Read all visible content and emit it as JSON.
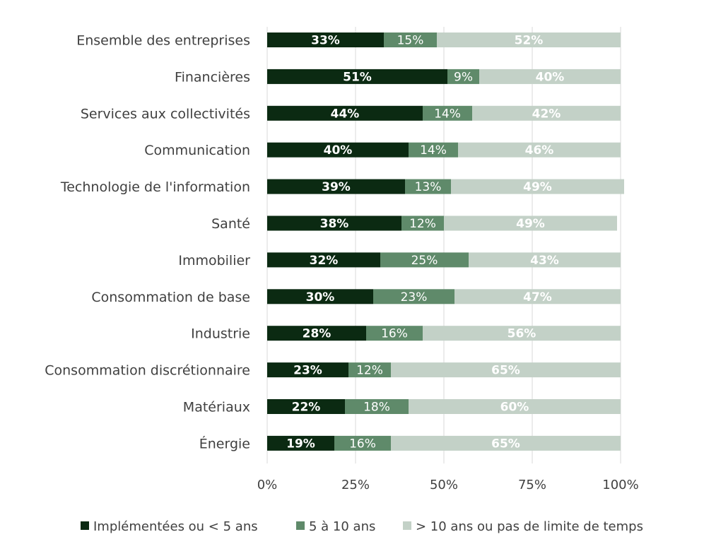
{
  "chart_data": {
    "type": "bar",
    "orientation": "horizontal",
    "stacked": "percent",
    "categories": [
      "Ensemble des entreprises",
      "Financières",
      "Services aux collectivités",
      "Communication",
      "Technologie de l'information",
      "Santé",
      "Immobilier",
      "Consommation de base",
      "Industrie",
      "Consommation discrétionnaire",
      "Matériaux",
      "Énergie"
    ],
    "series": [
      {
        "name": "Implémentées ou < 5 ans",
        "color": "#0b2a12",
        "values": [
          33,
          51,
          44,
          40,
          39,
          38,
          32,
          30,
          28,
          23,
          22,
          19
        ],
        "labels": [
          "33%",
          "51%",
          "44%",
          "40%",
          "39%",
          "38%",
          "32%",
          "30%",
          "28%",
          "23%",
          "22%",
          "19%"
        ]
      },
      {
        "name": "5 à 10 ans",
        "color": "#5f8a6a",
        "values": [
          15,
          9,
          14,
          14,
          13,
          12,
          25,
          23,
          16,
          12,
          18,
          16
        ],
        "labels": [
          "15%",
          "9%",
          "14%",
          "14%",
          "13%",
          "12%",
          "25%",
          "23%",
          "16%",
          "12%",
          "18%",
          "16%"
        ]
      },
      {
        "name": "> 10 ans ou pas de limite de temps",
        "color": "#c3d1c7",
        "values": [
          52,
          40,
          42,
          46,
          49,
          49,
          43,
          47,
          56,
          65,
          60,
          65
        ],
        "labels": [
          "52%",
          "40%",
          "42%",
          "46%",
          "49%",
          "49%",
          "43%",
          "47%",
          "56%",
          "65%",
          "60%",
          "65%"
        ]
      }
    ],
    "x_ticks": [
      "0%",
      "25%",
      "50%",
      "75%",
      "100%"
    ],
    "xlim": [
      0,
      100
    ],
    "grid": true,
    "legend_position": "bottom"
  }
}
